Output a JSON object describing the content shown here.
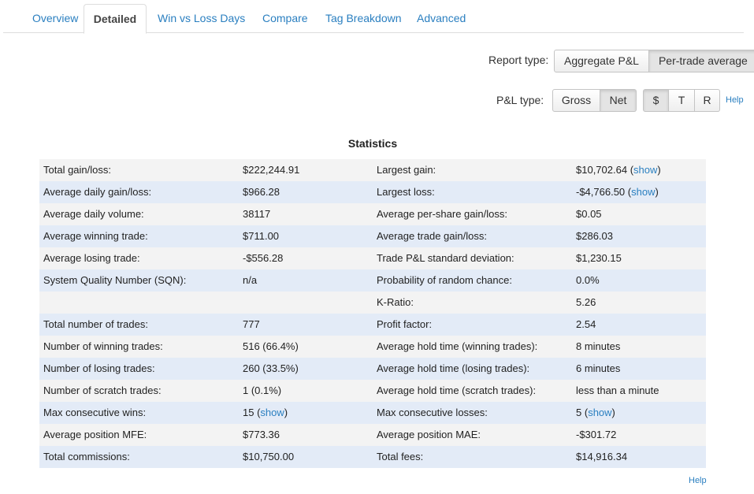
{
  "tabs": [
    {
      "label": "Overview"
    },
    {
      "label": "Detailed"
    },
    {
      "label": "Win vs Loss Days"
    },
    {
      "label": "Compare"
    },
    {
      "label": "Tag Breakdown"
    },
    {
      "label": "Advanced"
    }
  ],
  "active_tab": "Detailed",
  "report_type": {
    "label": "Report type:",
    "options": [
      "Aggregate P&L",
      "Per-trade average"
    ],
    "selected": "Per-trade average"
  },
  "pnl_type": {
    "label": "P&L type:",
    "options": [
      "Gross",
      "Net"
    ],
    "selected": "Net",
    "unit_options": [
      "$",
      "T",
      "R"
    ],
    "unit_selected": "$",
    "help": "Help"
  },
  "statistics": {
    "title": "Statistics",
    "rows": [
      {
        "l1": "Total gain/loss:",
        "v1": "$222,244.91",
        "l2": "Largest gain:",
        "v2": "$10,702.64",
        "v2_link": "show"
      },
      {
        "l1": "Average daily gain/loss:",
        "v1": "$966.28",
        "l2": "Largest loss:",
        "v2": "-$4,766.50",
        "v2_link": "show"
      },
      {
        "l1": "Average daily volume:",
        "v1": "38117",
        "l2": "Average per-share gain/loss:",
        "v2": "$0.05"
      },
      {
        "l1": "Average winning trade:",
        "v1": "$711.00",
        "l2": "Average trade gain/loss:",
        "v2": "$286.03"
      },
      {
        "l1": "Average losing trade:",
        "v1": "-$556.28",
        "l2": "Trade P&L standard deviation:",
        "v2": "$1,230.15"
      },
      {
        "l1": "System Quality Number (SQN):",
        "v1": "n/a",
        "l2": "Probability of random chance:",
        "v2": "0.0%"
      },
      {
        "l1": "",
        "v1": "",
        "l2": "K-Ratio:",
        "v2": "5.26"
      },
      {
        "l1": "Total number of trades:",
        "v1": "777",
        "l2": "Profit factor:",
        "v2": "2.54"
      },
      {
        "l1": "Number of winning trades:",
        "v1": "516 (66.4%)",
        "l2": "Average hold time (winning trades):",
        "v2": "8 minutes"
      },
      {
        "l1": "Number of losing trades:",
        "v1": "260 (33.5%)",
        "l2": "Average hold time (losing trades):",
        "v2": "6 minutes"
      },
      {
        "l1": "Number of scratch trades:",
        "v1": "1 (0.1%)",
        "l2": "Average hold time (scratch trades):",
        "v2": "less than a minute"
      },
      {
        "l1": "Max consecutive wins:",
        "v1": "15",
        "v1_link": "show",
        "l2": "Max consecutive losses:",
        "v2": "5",
        "v2_link": "show"
      },
      {
        "l1": "Average position MFE:",
        "v1": "$773.36",
        "l2": "Average position MAE:",
        "v2": "-$301.72"
      },
      {
        "l1": "Total commissions:",
        "v1": "$10,750.00",
        "l2": "Total fees:",
        "v2": "$14,916.34"
      }
    ],
    "help": "Help"
  }
}
